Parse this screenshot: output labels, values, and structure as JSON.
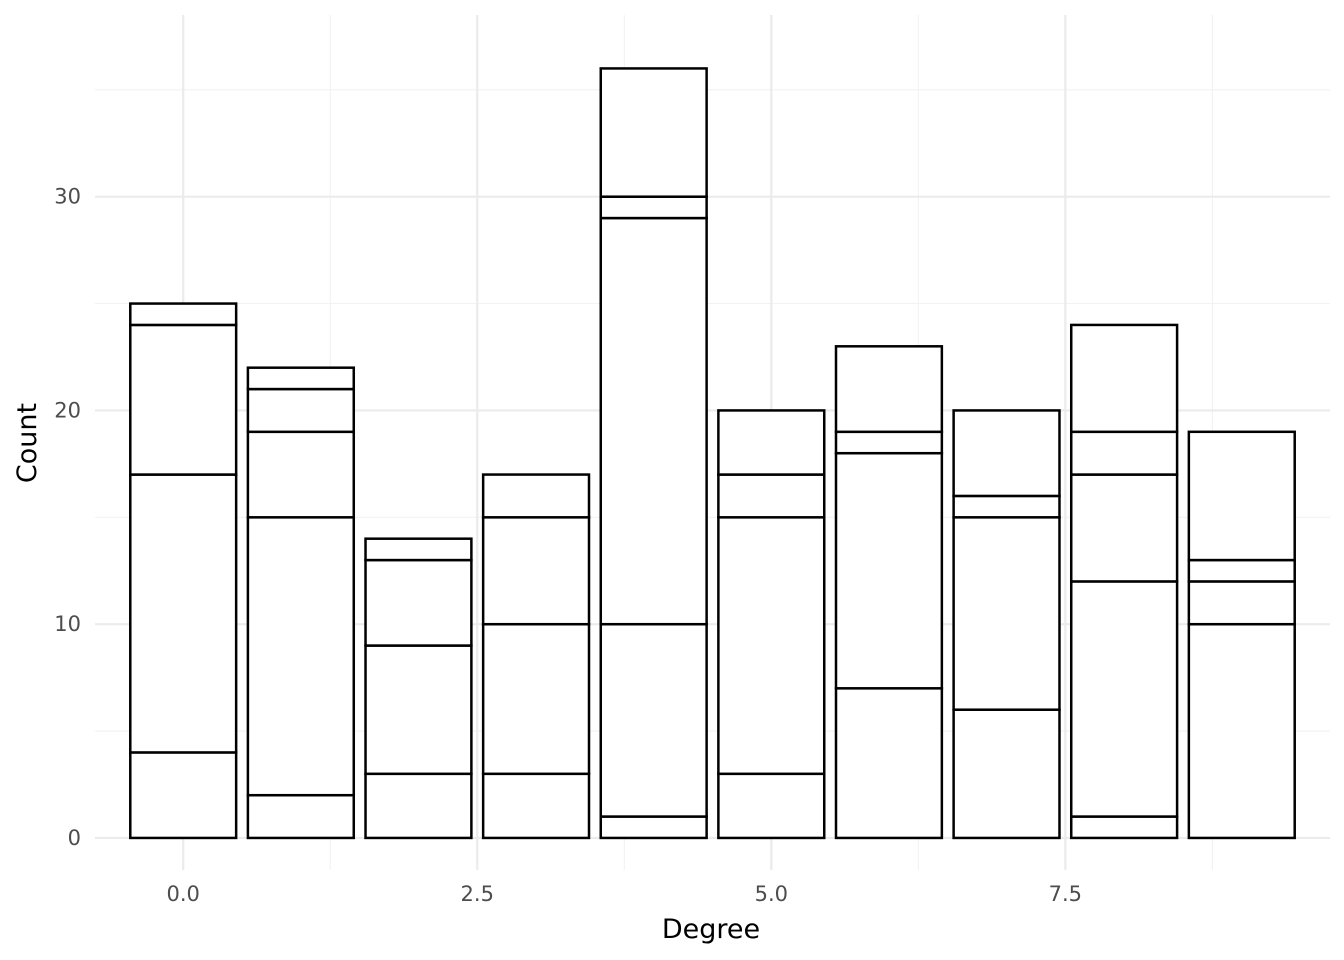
{
  "chart_data": {
    "type": "bar",
    "stacked": true,
    "title": "",
    "xlabel": "Degree",
    "ylabel": "Count",
    "x": [
      0,
      1,
      2,
      3,
      4,
      5,
      6,
      7,
      8,
      9
    ],
    "segment_boundaries": [
      [
        4,
        17,
        24,
        25
      ],
      [
        2,
        15,
        19,
        21,
        22
      ],
      [
        3,
        9,
        13,
        14
      ],
      [
        3,
        10,
        15,
        17
      ],
      [
        1,
        10,
        29,
        30,
        36
      ],
      [
        3,
        15,
        17,
        20
      ],
      [
        7,
        18,
        19,
        23
      ],
      [
        6,
        15,
        16,
        20
      ],
      [
        1,
        12,
        17,
        19,
        24
      ],
      [
        10,
        12,
        13,
        19
      ]
    ],
    "totals": [
      25,
      22,
      14,
      17,
      36,
      20,
      23,
      20,
      24,
      19
    ],
    "xlim": [
      -0.75,
      9.75
    ],
    "ylim": [
      -1.5,
      38.5
    ],
    "x_ticks": [
      0,
      2.5,
      5,
      7.5
    ],
    "x_tick_labels": [
      "0.0",
      "2.5",
      "5.0",
      "7.5"
    ],
    "y_ticks": [
      0,
      10,
      20,
      30
    ],
    "y_tick_labels": [
      "0",
      "10",
      "20",
      "30"
    ],
    "grid": true,
    "bar_fill": "#ffffff",
    "bar_stroke": "#000000",
    "grid_major_color": "#ebebeb",
    "grid_minor_color": "#f2f2f2"
  }
}
